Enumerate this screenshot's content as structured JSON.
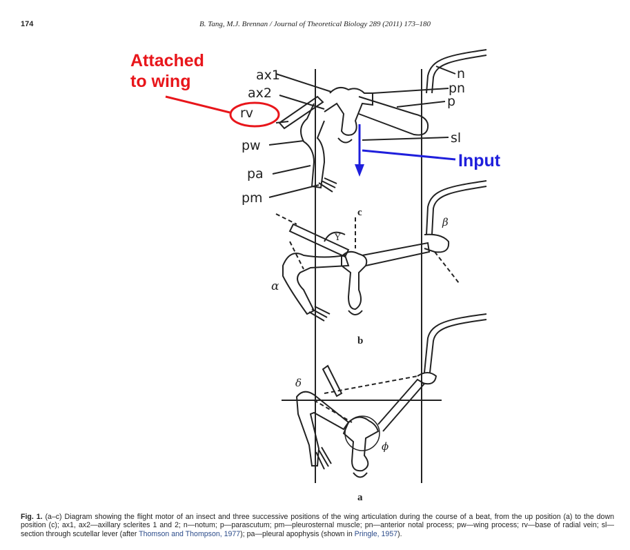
{
  "header": {
    "page_number": "174",
    "running_title": "B. Tang, M.J. Brennan / Journal of Theoretical Biology 289 (2011) 173–180"
  },
  "figure": {
    "annotations": {
      "attached_line1": "Attached",
      "attached_line2": "to wing",
      "input": "Input"
    },
    "labels": {
      "ax1": "ax1",
      "ax2": "ax2",
      "rv": "rv",
      "pw": "pw",
      "pa": "pa",
      "pm": "pm",
      "n": "n",
      "pn": "pn",
      "p": "p",
      "sl": "sl"
    },
    "panel_labels": {
      "c": "c",
      "b": "b",
      "a": "a"
    },
    "greek": {
      "beta": "β",
      "gamma": "Y",
      "alpha": "α",
      "delta": "δ",
      "phi": "ϕ"
    },
    "colors": {
      "red_annotation": "#e8161b",
      "blue_annotation": "#1f1fdc"
    }
  },
  "caption": {
    "label": "Fig. 1.",
    "text_1": " (a–c) Diagram showing the flight motor of an insect and three successive positions of the wing articulation during the course of a beat, from the up position (a) to the down position (c); ax1, ax2—axillary sclerites 1 and 2; n—notum; p—parascutum; pm—pleurosternal muscle; pn—anterior notal process; pw—wing process; rv—base of radial vein; sl—section through scutellar lever (after ",
    "ref_1": "Thomson and Thompson, 1977",
    "text_2": "); pa—pleural apophysis (shown in ",
    "ref_2": "Pringle, 1957",
    "text_3": ")."
  }
}
